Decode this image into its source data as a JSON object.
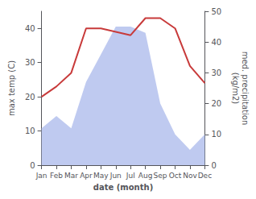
{
  "chart_data": {
    "type": "line",
    "categories": [
      "Jan",
      "Feb",
      "Mar",
      "Apr",
      "May",
      "Jun",
      "Jul",
      "Aug",
      "Sep",
      "Oct",
      "Nov",
      "Dec"
    ],
    "xlabel": "date (month)",
    "ylabel": "max temp (C)",
    "y2label": "med. precipitation\n(kg/m2)",
    "series": [
      {
        "type": "area",
        "color": "#b8c4ee",
        "axis": "y2",
        "values": [
          12,
          16,
          12,
          27,
          36,
          45,
          45,
          43,
          20,
          10,
          5,
          10
        ]
      },
      {
        "type": "line",
        "color": "#c83a3a",
        "values": [
          20,
          23,
          27,
          40,
          40,
          39,
          38,
          43,
          43,
          40,
          29,
          24
        ]
      }
    ],
    "ylim": [
      0,
      45
    ],
    "yticks": [
      0,
      10,
      20,
      30,
      40
    ],
    "y2lim": [
      0,
      50
    ],
    "y2ticks": [
      0,
      10,
      20,
      30,
      40,
      50
    ],
    "grid": false
  }
}
